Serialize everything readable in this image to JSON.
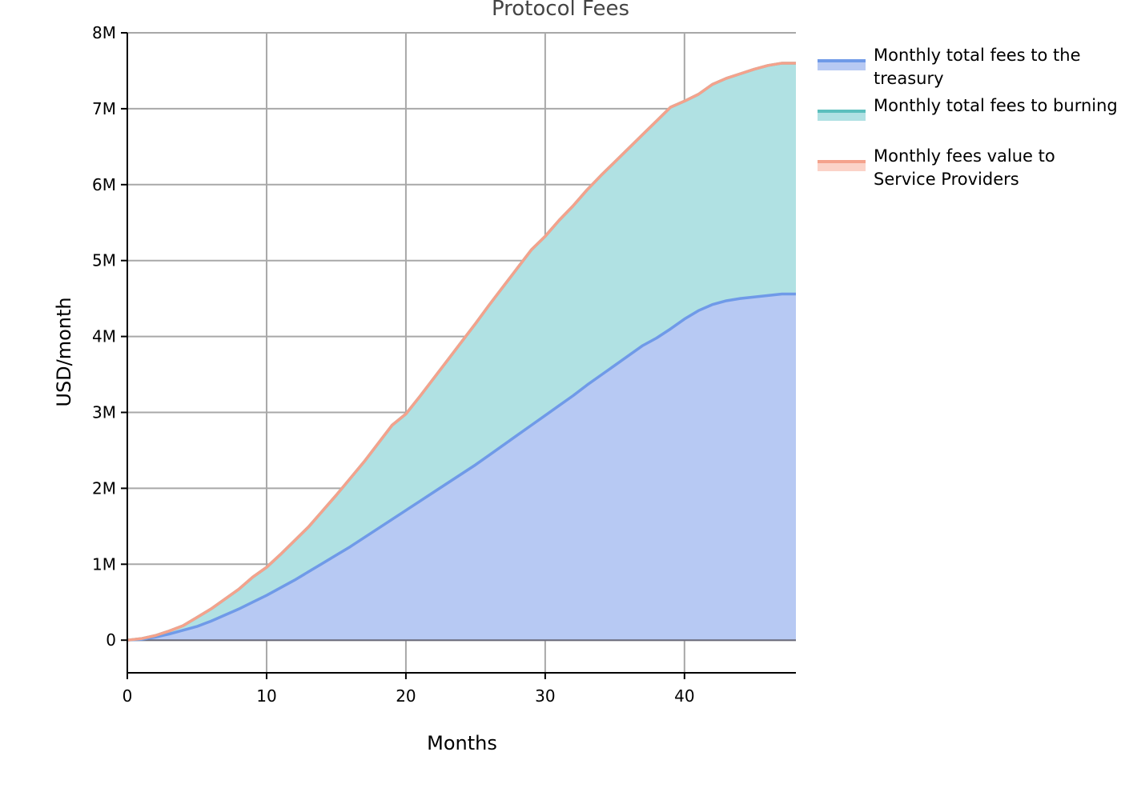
{
  "chart_data": {
    "type": "area",
    "stacked": true,
    "title": "Protocol Fees",
    "xlabel": "Months",
    "ylabel": "USD/month",
    "xlim": [
      0,
      48
    ],
    "ylim": [
      -430000,
      8000000
    ],
    "x_ticks": [
      0,
      10,
      20,
      30,
      40
    ],
    "x_tick_labels": [
      "0",
      "10",
      "20",
      "30",
      "40"
    ],
    "y_ticks": [
      0,
      1000000,
      2000000,
      3000000,
      4000000,
      5000000,
      6000000,
      7000000,
      8000000
    ],
    "y_tick_labels": [
      "0",
      "1M",
      "2M",
      "3M",
      "4M",
      "5M",
      "6M",
      "7M",
      "8M"
    ],
    "grid": true,
    "legend_position": "outside-right-top",
    "x": [
      0,
      1,
      2,
      3,
      4,
      5,
      6,
      7,
      8,
      9,
      10,
      11,
      12,
      13,
      14,
      15,
      16,
      17,
      18,
      19,
      20,
      21,
      22,
      23,
      24,
      25,
      26,
      27,
      28,
      29,
      30,
      31,
      32,
      33,
      34,
      35,
      36,
      37,
      38,
      39,
      40,
      41,
      42,
      43,
      44,
      45,
      46,
      47,
      48
    ],
    "series": [
      {
        "name": "Monthly total fees to the treasury",
        "line_color": "#6f9ae8",
        "fill_color": "#b7c9f3",
        "values": [
          0,
          10000,
          40000,
          80000,
          130000,
          180000,
          250000,
          330000,
          410000,
          500000,
          590000,
          690000,
          790000,
          900000,
          1010000,
          1120000,
          1230000,
          1350000,
          1470000,
          1590000,
          1710000,
          1830000,
          1950000,
          2070000,
          2190000,
          2310000,
          2440000,
          2570000,
          2700000,
          2830000,
          2960000,
          3090000,
          3220000,
          3360000,
          3490000,
          3620000,
          3750000,
          3880000,
          3980000,
          4100000,
          4230000,
          4340000,
          4420000,
          4470000,
          4500000,
          4520000,
          4540000,
          4560000,
          4560000
        ]
      },
      {
        "name": "Monthly total fees to burning",
        "line_color": "#5bbfbd",
        "fill_color": "#b0e1e3",
        "values": [
          0,
          10000,
          20000,
          40000,
          60000,
          120000,
          160000,
          210000,
          260000,
          330000,
          370000,
          440000,
          520000,
          590000,
          690000,
          790000,
          900000,
          1000000,
          1120000,
          1240000,
          1270000,
          1380000,
          1500000,
          1620000,
          1740000,
          1860000,
          1980000,
          2090000,
          2200000,
          2310000,
          2360000,
          2440000,
          2500000,
          2570000,
          2630000,
          2680000,
          2730000,
          2780000,
          2860000,
          2920000,
          2870000,
          2850000,
          2900000,
          2930000,
          2960000,
          3000000,
          3030000,
          3040000,
          3040000
        ]
      },
      {
        "name": "Monthly fees value to Service Providers",
        "line_color": "#f4a28c",
        "fill_color": "#fbd3c8",
        "values": [
          0,
          0,
          0,
          0,
          0,
          0,
          0,
          0,
          0,
          0,
          0,
          0,
          0,
          0,
          0,
          0,
          0,
          0,
          0,
          0,
          0,
          0,
          0,
          0,
          0,
          0,
          0,
          0,
          0,
          0,
          0,
          0,
          0,
          0,
          0,
          0,
          0,
          0,
          0,
          0,
          0,
          0,
          0,
          0,
          0,
          0,
          0,
          0,
          0
        ]
      }
    ],
    "colors": {
      "grid": "#a8a8a8",
      "axis": "#000000",
      "zero_line": "#6a6a7a"
    }
  }
}
